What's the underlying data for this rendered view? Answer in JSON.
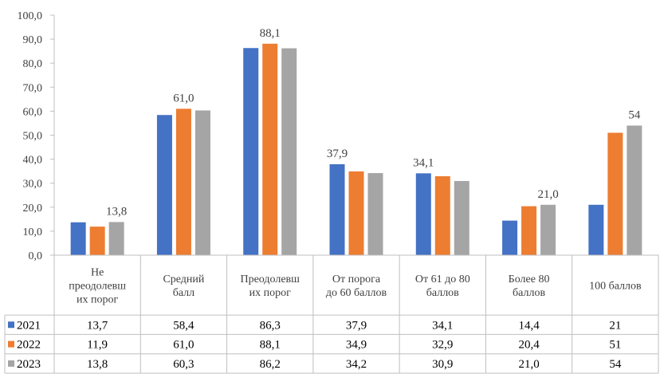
{
  "chart_data": {
    "type": "bar",
    "categories": [
      [
        "Не",
        "преодолевш",
        "их порог"
      ],
      [
        "Средний",
        "балл"
      ],
      [
        "Преодолевш",
        "их порог"
      ],
      [
        "От порога",
        "до 60 баллов"
      ],
      [
        "От 61 до 80",
        "баллов"
      ],
      [
        "Более 80",
        "баллов"
      ],
      [
        "100 баллов"
      ]
    ],
    "series": [
      {
        "name": "2021",
        "color": "#4472C4",
        "values": [
          13.7,
          58.4,
          86.3,
          37.9,
          34.1,
          14.4,
          21
        ],
        "table_labels": [
          "13,7",
          "58,4",
          "86,3",
          "37,9",
          "34,1",
          "14,4",
          "21"
        ]
      },
      {
        "name": "2022",
        "color": "#ED7D31",
        "values": [
          11.9,
          61.0,
          88.1,
          34.9,
          32.9,
          20.4,
          51
        ],
        "table_labels": [
          "11,9",
          "61,0",
          "88,1",
          "34,9",
          "32,9",
          "20,4",
          "51"
        ]
      },
      {
        "name": "2023",
        "color": "#A5A5A5",
        "values": [
          13.8,
          60.3,
          86.2,
          34.2,
          30.9,
          21.0,
          54
        ],
        "table_labels": [
          "13,8",
          "60,3",
          "86,2",
          "34,2",
          "30,9",
          "21,0",
          "54"
        ]
      }
    ],
    "ylim": [
      0,
      100
    ],
    "ytick_step": 10,
    "ytick_labels": [
      "0,0",
      "10,0",
      "20,0",
      "30,0",
      "40,0",
      "50,0",
      "60,0",
      "70,0",
      "80,0",
      "90,0",
      "100,0"
    ],
    "data_labels": [
      {
        "category": 0,
        "series": 2,
        "text": "13,8"
      },
      {
        "category": 1,
        "series": 1,
        "text": "61,0"
      },
      {
        "category": 2,
        "series": 1,
        "text": "88,1"
      },
      {
        "category": 3,
        "series": 0,
        "text": "37,9"
      },
      {
        "category": 4,
        "series": 0,
        "text": "34,1"
      },
      {
        "category": 5,
        "series": 2,
        "text": "21,0"
      },
      {
        "category": 6,
        "series": 2,
        "text": "54"
      }
    ],
    "grid": false,
    "legend": "data-table-left"
  }
}
